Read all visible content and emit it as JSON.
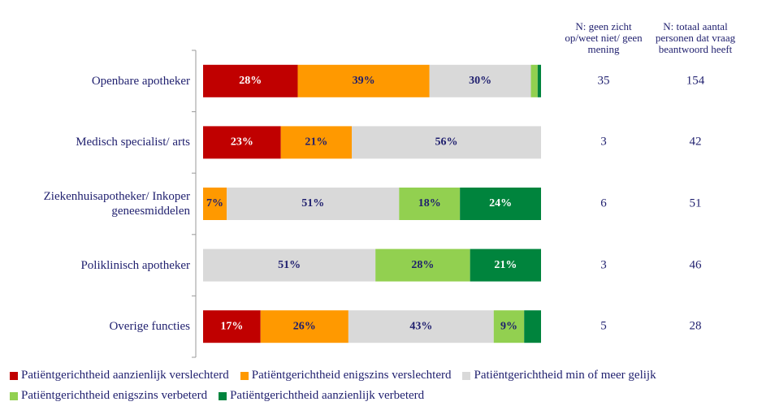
{
  "chart_data": {
    "type": "stacked-bar-horizontal",
    "categories": [
      "Openbare apotheker",
      "Medisch specialist/ arts",
      "Ziekenhuisapotheker/ Inkoper geneesmiddelen",
      "Poliklinisch apotheker",
      "Overige functies"
    ],
    "xlim": [
      0,
      100
    ],
    "series": [
      {
        "name": "Patiëntgerichtheid aanzienlijk verslechterd",
        "color": "#c00000",
        "label_color": "#ffffff",
        "values": [
          28,
          23,
          0,
          0,
          17
        ],
        "value_labels": [
          "28%",
          "23%",
          null,
          null,
          "17%"
        ]
      },
      {
        "name": "Patiëntgerichtheid enigszins verslechterd",
        "color": "#ff9900",
        "label_color": "#1f1f6e",
        "values": [
          39,
          21,
          7,
          0,
          26
        ],
        "value_labels": [
          "39%",
          "21%",
          "7%",
          null,
          "26%"
        ]
      },
      {
        "name": "Patiëntgerichtheid min of meer gelijk",
        "color": "#d9d9d9",
        "label_color": "#1f1f6e",
        "values": [
          30,
          56,
          51,
          51,
          43
        ],
        "value_labels": [
          "30%",
          "56%",
          "51%",
          "51%",
          "43%"
        ]
      },
      {
        "name": "Patiëntgerichtheid enigszins verbeterd",
        "color": "#92d050",
        "label_color": "#1f1f6e",
        "values": [
          2,
          0,
          18,
          28,
          9
        ],
        "value_labels": [
          null,
          null,
          "18%",
          "28%",
          "9%"
        ]
      },
      {
        "name": "Patiëntgerichtheid aanzienlijk verbeterd",
        "color": "#00843d",
        "label_color": "#ffffff",
        "values": [
          1,
          0,
          24,
          21,
          5
        ],
        "value_labels": [
          null,
          null,
          "24%",
          "21%",
          null
        ]
      }
    ],
    "columns": [
      {
        "header": "N: geen zicht op/weet niet/ geen mening",
        "values": [
          35,
          3,
          6,
          3,
          5
        ]
      },
      {
        "header": "N: totaal aantal personen dat vraag beantwoord heeft",
        "values": [
          154,
          42,
          51,
          46,
          28
        ]
      }
    ]
  }
}
